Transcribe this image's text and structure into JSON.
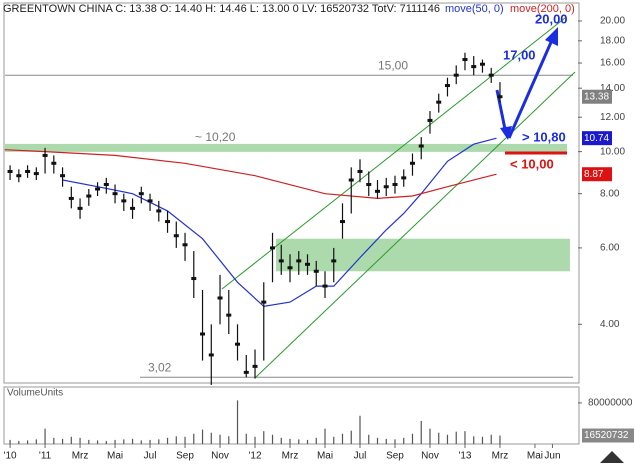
{
  "chart_data": {
    "type": "candlestick",
    "header": "GREENTOWN CHINA C: 13.38 O: 14.40 H: 14.46 L: 13.00 0 LV: 16520732 TotV: 7111146",
    "log_scale": true,
    "xlim": [
      -2.29,
      30.46
    ],
    "ylim": [
      2.93,
      22
    ],
    "xticks": [
      {
        "value": -2,
        "label": "'10"
      },
      {
        "value": 0,
        "label": "'11"
      },
      {
        "value": 2,
        "label": "Mrz"
      },
      {
        "value": 4,
        "label": "Mai"
      },
      {
        "value": 6,
        "label": "Jul"
      },
      {
        "value": 8,
        "label": "Sep"
      },
      {
        "value": 10,
        "label": "Nov"
      },
      {
        "value": 12,
        "label": "'12"
      },
      {
        "value": 14,
        "label": "Mrz"
      },
      {
        "value": 16,
        "label": "Mai"
      },
      {
        "value": 18,
        "label": "Jul"
      },
      {
        "value": 20,
        "label": "Sep"
      },
      {
        "value": 22,
        "label": "Nov"
      },
      {
        "value": 24,
        "label": "'13"
      },
      {
        "value": 26,
        "label": "Mrz"
      },
      {
        "value": 28,
        "label": "Mai"
      },
      {
        "value": 29,
        "label": "Jun"
      }
    ],
    "yticks": [
      {
        "value": 4,
        "label": "4.00"
      },
      {
        "value": 6,
        "label": "6.00"
      },
      {
        "value": 8,
        "label": "8.00"
      },
      {
        "value": 10,
        "label": "10.00"
      },
      {
        "value": 12,
        "label": "12.00"
      },
      {
        "value": 14,
        "label": "14.00"
      },
      {
        "value": 16,
        "label": "16.00"
      },
      {
        "value": 18,
        "label": "18.00"
      },
      {
        "value": 20,
        "label": "20.00"
      }
    ],
    "x": [
      -2,
      -1.5,
      -1,
      -0.5,
      0,
      0.5,
      1,
      1.5,
      2,
      2.5,
      3,
      3.5,
      4,
      4.5,
      5,
      5.5,
      6,
      6.5,
      7,
      7.5,
      8,
      8.5,
      9,
      9.5,
      10,
      10.5,
      11,
      11.5,
      12,
      12.5,
      13,
      13.5,
      14,
      14.5,
      15,
      15.5,
      16,
      16.5,
      17,
      17.5,
      18,
      18.5,
      19,
      19.5,
      20,
      20.5,
      21,
      21.5,
      22,
      22.5,
      23,
      23.5,
      24,
      24.5,
      25,
      25.5,
      26
    ],
    "close": [
      9.0,
      8.8,
      9.0,
      8.9,
      9.8,
      9.4,
      8.8,
      7.8,
      7.4,
      7.9,
      8.2,
      8.4,
      8.0,
      7.7,
      7.4,
      8.0,
      7.7,
      7.3,
      6.9,
      6.4,
      6.1,
      5.1,
      3.8,
      3.4,
      4.6,
      4.2,
      3.6,
      3.1,
      3.2,
      4.5,
      6.0,
      5.6,
      5.4,
      5.6,
      5.5,
      5.3,
      4.9,
      5.6,
      6.9,
      8.6,
      9.0,
      8.4,
      8.1,
      8.3,
      8.4,
      8.7,
      9.4,
      10.3,
      11.8,
      13.0,
      14.2,
      15.0,
      16.3,
      15.7,
      15.9,
      15.0,
      13.38
    ],
    "high": [
      9.3,
      9.1,
      9.3,
      9.2,
      10.2,
      9.8,
      9.2,
      8.3,
      7.8,
      8.2,
      8.5,
      8.7,
      8.4,
      8.0,
      7.8,
      8.3,
      8.0,
      7.7,
      7.3,
      6.9,
      6.5,
      5.9,
      4.8,
      4.0,
      5.2,
      4.8,
      4.0,
      3.4,
      3.5,
      5.0,
      6.5,
      6.1,
      5.8,
      5.9,
      5.8,
      5.6,
      5.3,
      6.0,
      7.6,
      9.2,
      9.6,
      9.0,
      8.6,
      8.7,
      8.8,
      9.1,
      9.9,
      10.8,
      12.4,
      13.6,
      14.8,
      15.8,
      16.9,
      16.6,
      16.3,
      15.6,
      14.46
    ],
    "low": [
      8.6,
      8.5,
      8.7,
      8.6,
      8.9,
      8.9,
      8.3,
      7.4,
      7.0,
      7.5,
      7.9,
      8.0,
      7.6,
      7.3,
      7.0,
      7.6,
      7.3,
      6.9,
      6.5,
      6.0,
      5.6,
      4.6,
      3.3,
      2.9,
      4.0,
      3.8,
      3.3,
      3.02,
      3.0,
      3.3,
      5.0,
      5.2,
      5.0,
      5.2,
      5.2,
      4.9,
      4.6,
      5.0,
      6.3,
      7.2,
      8.5,
      7.9,
      7.8,
      7.9,
      8.0,
      8.3,
      8.8,
      9.6,
      11.0,
      12.3,
      13.4,
      14.3,
      15.4,
      15.0,
      15.2,
      14.4,
      13.0
    ],
    "series": [
      {
        "name": "move(50, 0)",
        "color": "#2233cc",
        "x": [
          1,
          3,
          5,
          7,
          9,
          11,
          12.5,
          14,
          15.5,
          16.5,
          18,
          19.5,
          20.5,
          21.5,
          23,
          24.5,
          25.8
        ],
        "values": [
          8.6,
          8.3,
          8.0,
          7.3,
          6.3,
          5.0,
          4.4,
          4.5,
          4.9,
          4.9,
          5.7,
          6.6,
          7.2,
          8.0,
          9.5,
          10.4,
          10.74
        ]
      },
      {
        "name": "move(200, 0)",
        "color": "#cc2222",
        "x": [
          -2.3,
          0,
          4,
          8,
          12,
          16,
          19,
          21,
          23,
          25.8
        ],
        "values": [
          10.1,
          10.0,
          9.8,
          9.4,
          8.8,
          8.0,
          7.8,
          7.9,
          8.3,
          8.87
        ]
      }
    ],
    "price_tags": [
      {
        "value": 13.38,
        "color": "#808080"
      },
      {
        "value": 10.74,
        "color": "#1a1acc"
      },
      {
        "value": 8.87,
        "color": "#dd1111"
      }
    ],
    "levels": [
      {
        "value": 15,
        "label": "15,00"
      },
      {
        "value": 10.2,
        "label": "~ 10,20"
      },
      {
        "value": 3.02,
        "label": "3,02"
      }
    ],
    "annotations": [
      "20,00",
      "17,00",
      "> 10,80",
      "< 10,00"
    ],
    "volume_label": "VolumeUnits",
    "volume": [
      8000000,
      6000000,
      7000000,
      9000000,
      30000000,
      12000000,
      10000000,
      14000000,
      12000000,
      8000000,
      7000000,
      6000000,
      8000000,
      9000000,
      10000000,
      7000000,
      8000000,
      9000000,
      12000000,
      15000000,
      14000000,
      20000000,
      28000000,
      22000000,
      18000000,
      15000000,
      85000000,
      20000000,
      14000000,
      25000000,
      18000000,
      12000000,
      10000000,
      9000000,
      8000000,
      12000000,
      30000000,
      14000000,
      20000000,
      26000000,
      55000000,
      18000000,
      12000000,
      10000000,
      9000000,
      12000000,
      20000000,
      45000000,
      30000000,
      22000000,
      18000000,
      24000000,
      25000000,
      15000000,
      14000000,
      18000000,
      16520732
    ],
    "vlim": [
      0,
      111000000
    ],
    "vticks": [
      80000000
    ],
    "volume_tag": 16520732
  }
}
